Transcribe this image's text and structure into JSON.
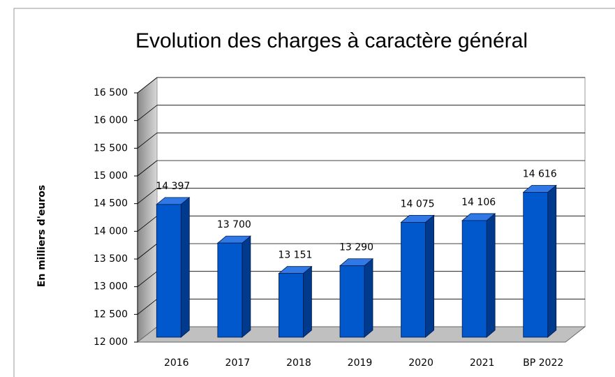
{
  "chart_data": {
    "type": "bar3d",
    "title": "Evolution des charges à caractère général",
    "y_label": "En milliers d'euros",
    "categories": [
      "2016",
      "2017",
      "2018",
      "2019",
      "2020",
      "2021",
      "BP 2022"
    ],
    "values": [
      14397,
      13700,
      13151,
      13290,
      14075,
      14106,
      14616
    ],
    "value_labels": [
      "14 397",
      "13 700",
      "13 151",
      "13 290",
      "14 075",
      "14 106",
      "14 616"
    ],
    "color": "#0058cc",
    "ylim": [
      12000,
      16500
    ],
    "yticks": [
      {
        "value": 12000,
        "label": "12 000"
      },
      {
        "value": 12500,
        "label": "12 500"
      },
      {
        "value": 13000,
        "label": "13 000"
      },
      {
        "value": 13500,
        "label": "13 500"
      },
      {
        "value": 14000,
        "label": "14 000"
      },
      {
        "value": 14500,
        "label": "14 500"
      },
      {
        "value": 15000,
        "label": "15 000"
      },
      {
        "value": 15500,
        "label": "15 500"
      },
      {
        "value": 16000,
        "label": "16 000"
      },
      {
        "value": 16500,
        "label": "16 500"
      }
    ],
    "grid": true
  }
}
